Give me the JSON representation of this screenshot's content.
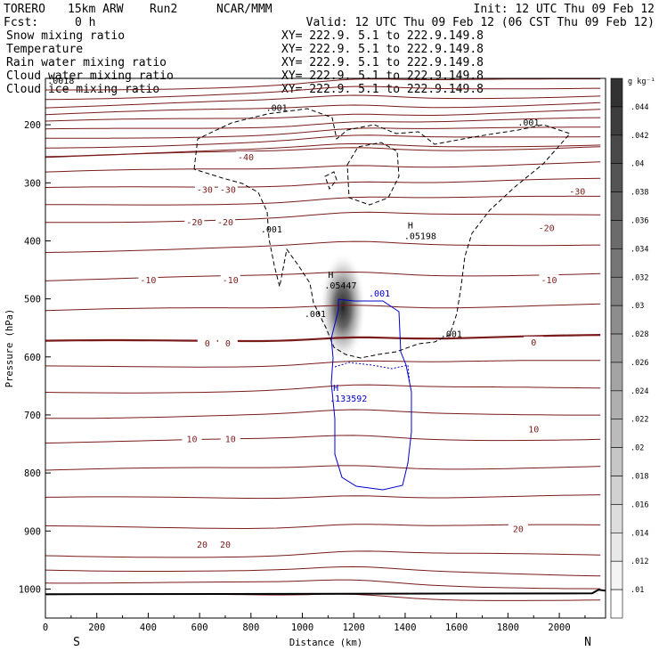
{
  "header": {
    "model": "TORERO",
    "resolution": "15km ARW",
    "run": "Run2",
    "org": "NCAR/MMM",
    "init": "Init: 12 UTC Thu 09 Feb 12",
    "fcst_label": "Fcst:",
    "fcst_value": "0 h",
    "valid": "Valid: 12 UTC Thu 09 Feb 12 (06 CST Thu 09 Feb 12)"
  },
  "fields": [
    {
      "name": "Snow mixing ratio",
      "color": "#000000",
      "xy": "XY= 222.9.  5.1 to 222.9.149.8"
    },
    {
      "name": "Temperature",
      "color": "#c00000",
      "xy": "XY= 222.9.  5.1 to 222.9.149.8"
    },
    {
      "name": "Rain water mixing ratio",
      "color": "#e00000",
      "xy": "XY= 222.9.  5.1 to 222.9.149.8"
    },
    {
      "name": "Cloud water mixing ratio",
      "color": "#0000cc",
      "xy": "XY= 222.9.  5.1 to 222.9.149.8"
    },
    {
      "name": "Cloud ice mixing ratio",
      "color": "#000000",
      "xy": "XY= 222.9.  5.1 to 222.9.149.8"
    }
  ],
  "chart_data": {
    "type": "contour-cross-section",
    "xlabel": "Distance (km)",
    "ylabel": "Pressure (hPa)",
    "xlim": [
      0,
      2180
    ],
    "ylim": [
      1050,
      120
    ],
    "x_ticks": [
      0,
      200,
      400,
      600,
      800,
      1000,
      1200,
      1400,
      1600,
      1800,
      2000
    ],
    "y_ticks": [
      200,
      300,
      400,
      500,
      600,
      700,
      800,
      900,
      1000
    ],
    "endpoints": {
      "left": "S",
      "right": "N"
    },
    "colorbar": {
      "unit": "g kg⁻¹",
      "levels": [
        ".044",
        ".042",
        ".04",
        ".038",
        ".036",
        ".034",
        ".032",
        ".03",
        ".028",
        ".026",
        ".024",
        ".022",
        ".02",
        ".018",
        ".016",
        ".014",
        ".012",
        ".01"
      ]
    },
    "temperature_contours": [
      {
        "label": "-40",
        "p": 255,
        "slope": 18
      },
      {
        "label": "-30",
        "p": 311,
        "slope": 16
      },
      {
        "label": "-20",
        "p": 367,
        "slope": 14
      },
      {
        "label": "-10",
        "p": 467,
        "slope": 12
      },
      {
        "label": "0",
        "p": 575,
        "slope": 10
      },
      {
        "label": "10",
        "p": 746,
        "slope": 6
      },
      {
        "label": "20",
        "p": 943,
        "slope": 2
      }
    ],
    "temperature_labels": [
      {
        "text": "-40",
        "x": 780,
        "p": 255
      },
      {
        "text": "-30",
        "x": 620,
        "p": 311
      },
      {
        "text": "-30",
        "x": 710,
        "p": 311
      },
      {
        "text": "-30",
        "x": 2070,
        "p": 314
      },
      {
        "text": "-20",
        "x": 580,
        "p": 367
      },
      {
        "text": "-20",
        "x": 700,
        "p": 367
      },
      {
        "text": "-20",
        "x": 1950,
        "p": 377
      },
      {
        "text": "-10",
        "x": 400,
        "p": 467
      },
      {
        "text": "-10",
        "x": 720,
        "p": 467
      },
      {
        "text": "-10",
        "x": 1960,
        "p": 467
      },
      {
        "text": "0",
        "x": 630,
        "p": 576
      },
      {
        "text": "0",
        "x": 710,
        "p": 576
      },
      {
        "text": "0",
        "x": 1900,
        "p": 574
      },
      {
        "text": "10",
        "x": 570,
        "p": 741
      },
      {
        "text": "10",
        "x": 720,
        "p": 741
      },
      {
        "text": "10",
        "x": 1900,
        "p": 724
      },
      {
        "text": "20",
        "x": 610,
        "p": 923
      },
      {
        "text": "20",
        "x": 700,
        "p": 923
      },
      {
        "text": "20",
        "x": 1840,
        "p": 896
      }
    ],
    "extrema": [
      {
        "mark": "H",
        "value": ".05198",
        "x": 1410,
        "p": 385,
        "color": "#000000"
      },
      {
        "mark": "H",
        "value": ".05447",
        "x": 1100,
        "p": 470,
        "color": "#000000"
      },
      {
        "mark": "H",
        "value": ".133592",
        "x": 1120,
        "p": 665,
        "color": "#0000cc"
      }
    ],
    "snow_contour_labels": [
      {
        "text": ".001",
        "x": 900,
        "p": 170
      },
      {
        "text": ".001",
        "x": 1880,
        "p": 195
      },
      {
        "text": ".001",
        "x": 880,
        "p": 379
      },
      {
        "text": ".001",
        "x": 1050,
        "p": 525
      },
      {
        "text": ".001",
        "x": 1580,
        "p": 560
      },
      {
        "text": ".0018",
        "x": 60,
        "p": 123
      }
    ],
    "cloud_water_contour_labels": [
      {
        "text": ".001",
        "x": 1300,
        "p": 490
      }
    ]
  }
}
